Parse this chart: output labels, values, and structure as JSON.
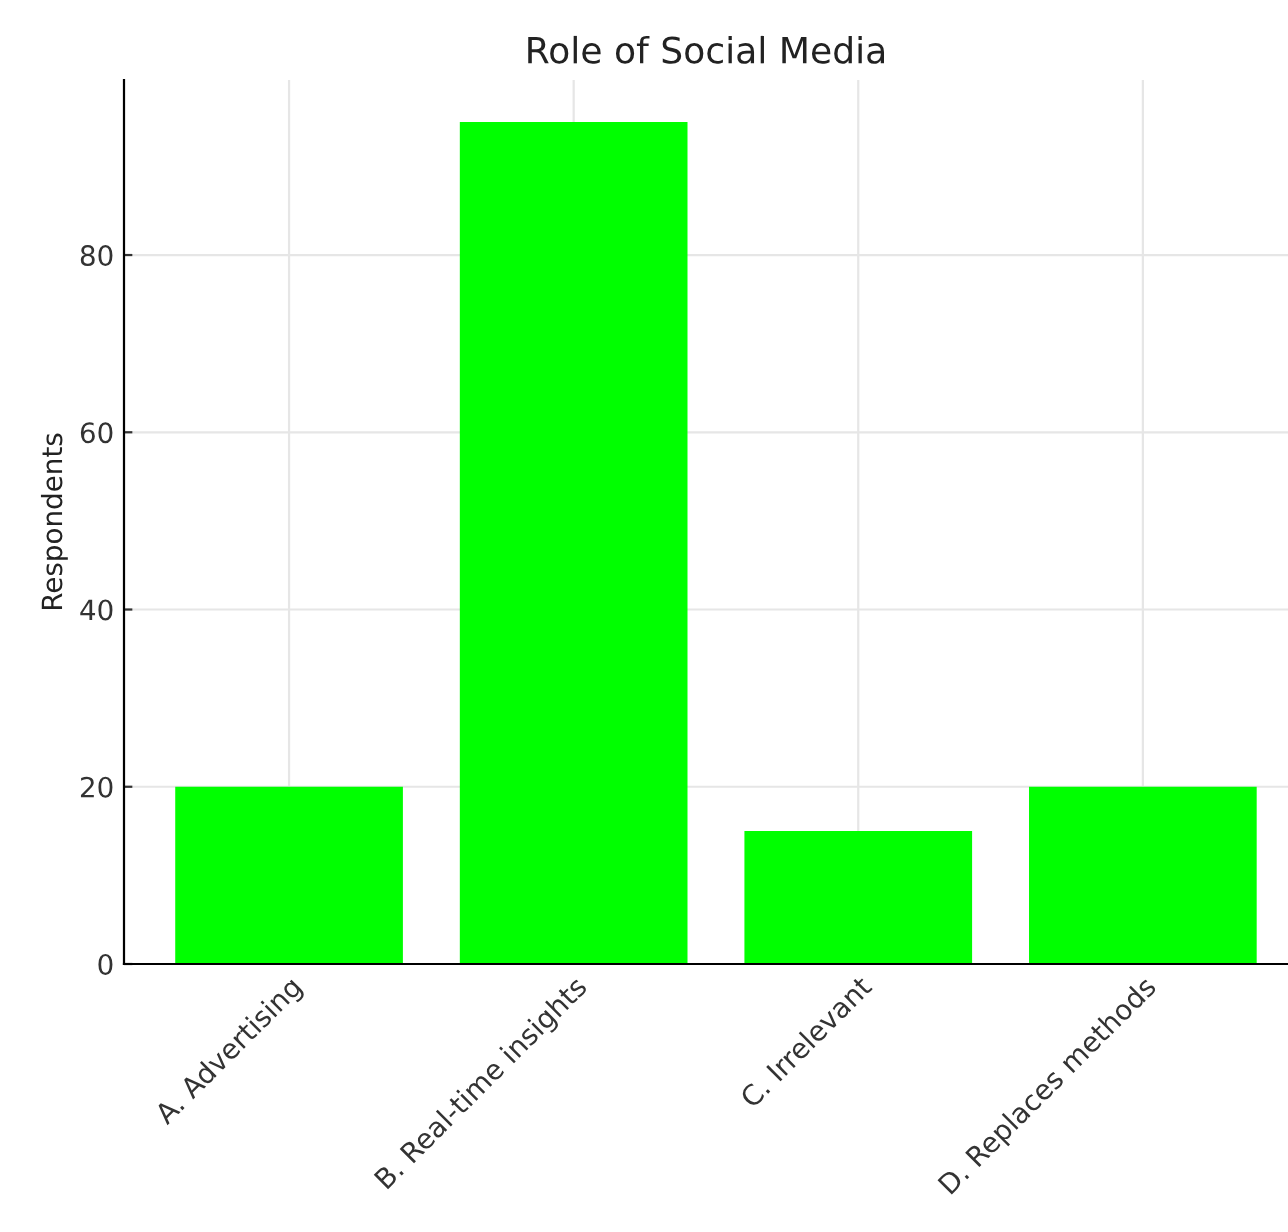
{
  "chart_data": {
    "type": "bar",
    "title": "Role of Social Media",
    "ylabel": "Respondents",
    "categories": [
      "A. Advertising",
      "B. Real-time insights",
      "C. Irrelevant",
      "D. Replaces methods"
    ],
    "values": [
      20,
      95,
      15,
      20
    ],
    "color": "#00ff00",
    "ylim": [
      0,
      99.75
    ],
    "yticks": [
      0,
      20,
      40,
      60,
      80
    ],
    "grid": true
  }
}
